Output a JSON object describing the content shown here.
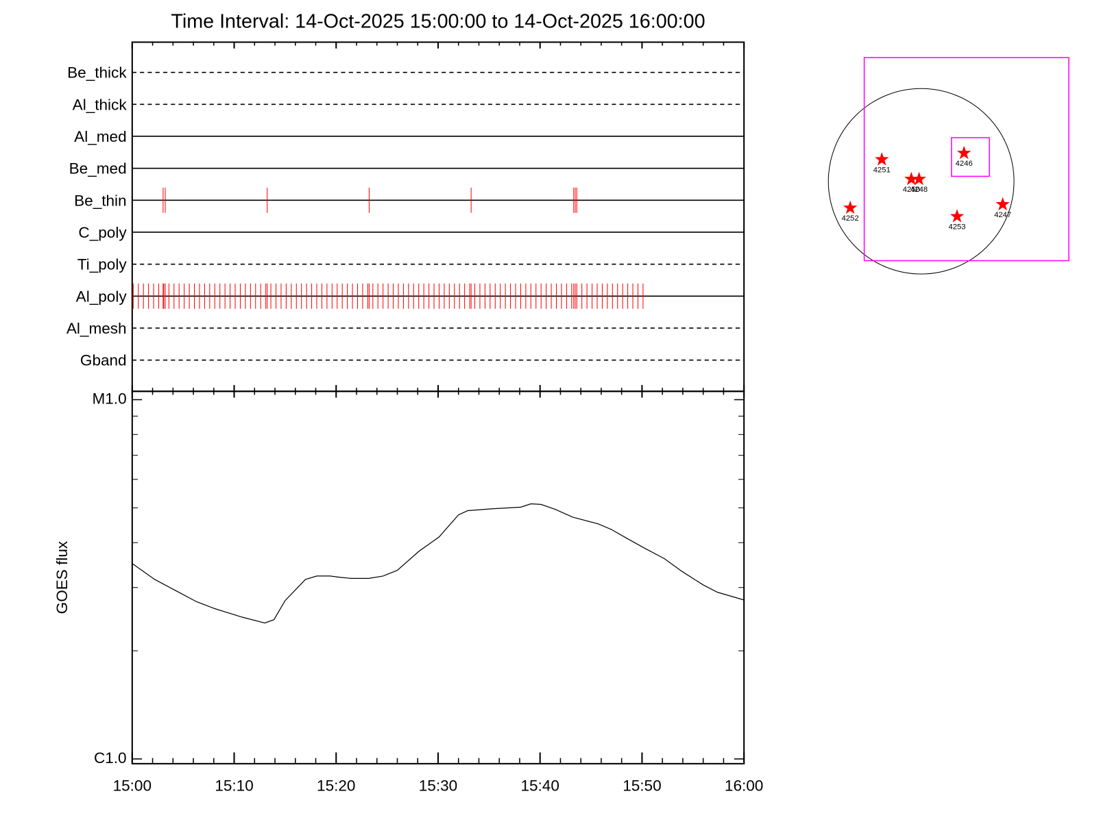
{
  "chart_data": [
    {
      "type": "events",
      "title": "Time Interval: 14-Oct-2025 15:00:00 to 14-Oct-2025 16:00:00",
      "categories": [
        "Be_thick",
        "Al_thick",
        "Al_med",
        "Be_med",
        "Be_thin",
        "C_poly",
        "Ti_poly",
        "Al_poly",
        "Al_mesh",
        "Gband"
      ],
      "line_styles": [
        "dashed",
        "dashed",
        "solid",
        "solid",
        "solid",
        "solid",
        "dashed",
        "solid",
        "dashed",
        "dashed"
      ],
      "color": "#ff0000",
      "events": [
        [],
        [],
        [],
        [],
        [
          3.03,
          3.24,
          13.24,
          23.24,
          33.24,
          43.3,
          43.45,
          43.6
        ],
        [],
        [],
        [
          0.1,
          0.6,
          1.1,
          1.6,
          2.1,
          2.6,
          3.1,
          3.6,
          4.1,
          4.6,
          5.1,
          5.6,
          6.1,
          6.6,
          7.1,
          7.6,
          8.1,
          8.6,
          9.1,
          9.6,
          10.1,
          10.6,
          11.1,
          11.6,
          12.1,
          12.6,
          13.1,
          13.6,
          14.1,
          14.6,
          15.1,
          15.6,
          16.1,
          16.6,
          17.1,
          17.6,
          18.1,
          18.6,
          19.1,
          19.6,
          20.1,
          20.6,
          21.1,
          21.6,
          22.1,
          22.6,
          23.1,
          23.6,
          24.1,
          24.6,
          25.1,
          25.6,
          26.1,
          26.6,
          27.1,
          27.6,
          28.1,
          28.6,
          29.1,
          29.6,
          30.1,
          30.6,
          31.1,
          31.6,
          32.1,
          32.6,
          33.1,
          33.6,
          34.1,
          34.6,
          35.1,
          35.6,
          36.1,
          36.6,
          37.1,
          37.6,
          38.1,
          38.6,
          39.1,
          39.6,
          40.1,
          40.6,
          41.1,
          41.6,
          42.1,
          42.6,
          43.1,
          43.6,
          44.1,
          44.6,
          45.1,
          45.6,
          46.1,
          46.6,
          47.1,
          47.6,
          48.1,
          48.6,
          49.1,
          49.6,
          50.1,
          3.03,
          3.24,
          13.24,
          23.24,
          33.24,
          43.3,
          43.45
        ],
        [],
        []
      ],
      "xlim": [
        0,
        60
      ],
      "xticks": [
        0,
        10,
        20,
        30,
        40,
        50,
        60
      ],
      "xminorticks": [
        2,
        4,
        6,
        8,
        12,
        14,
        16,
        18,
        22,
        24,
        26,
        28,
        32,
        34,
        36,
        38,
        42,
        44,
        46,
        48,
        52,
        54,
        56,
        58
      ]
    },
    {
      "type": "line",
      "y_label": "GOES flux",
      "log_scale": true,
      "color": "#000000",
      "x": [
        0,
        2.2,
        6.3,
        8.1,
        10.8,
        13.0,
        13.9,
        15.0,
        17.0,
        18.1,
        19.4,
        20.5,
        21.5,
        23.2,
        24.6,
        26.0,
        28.1,
        30.1,
        32.0,
        32.9,
        35.3,
        38.1,
        39.1,
        40.1,
        41.5,
        43.2,
        45.7,
        47.0,
        48.4,
        50.1,
        52.2,
        53.9,
        56.0,
        57.4,
        60
      ],
      "values": [
        3.5e-06,
        3.16e-06,
        2.74e-06,
        2.62e-06,
        2.48e-06,
        2.39e-06,
        2.44e-06,
        2.76e-06,
        3.16e-06,
        3.23e-06,
        3.23e-06,
        3.2e-06,
        3.18e-06,
        3.18e-06,
        3.23e-06,
        3.35e-06,
        3.78e-06,
        4.15e-06,
        4.78e-06,
        4.91e-06,
        4.97e-06,
        5.02e-06,
        5.13e-06,
        5.11e-06,
        4.95e-06,
        4.71e-06,
        4.51e-06,
        4.35e-06,
        4.13e-06,
        3.88e-06,
        3.61e-06,
        3.33e-06,
        3.05e-06,
        2.91e-06,
        2.77e-06
      ],
      "xlim": [
        0,
        60
      ],
      "xticks": [
        {
          "value": 0,
          "label": "15:00"
        },
        {
          "value": 10,
          "label": "15:10"
        },
        {
          "value": 20,
          "label": "15:20"
        },
        {
          "value": 30,
          "label": "15:30"
        },
        {
          "value": 40,
          "label": "15:40"
        },
        {
          "value": 50,
          "label": "15:50"
        },
        {
          "value": 60,
          "label": "16:00"
        }
      ],
      "xminorticks": [
        2,
        4,
        6,
        8,
        12,
        14,
        16,
        18,
        22,
        24,
        26,
        28,
        32,
        34,
        36,
        38,
        42,
        44,
        46,
        48,
        52,
        54,
        56,
        58
      ],
      "ylim": [
        9.7e-07,
        1.055e-05
      ],
      "yticks": [
        {
          "value": 1e-06,
          "label": "C1.0"
        },
        {
          "value": 1e-05,
          "label": "M1.0"
        }
      ],
      "yminorticks": [
        2e-06,
        3e-06,
        4e-06,
        5e-06,
        6e-06,
        7e-06,
        8e-06,
        9e-06
      ]
    },
    {
      "type": "map",
      "solar_radius": 960,
      "color": "#ff0000",
      "box_color": "#ff00ff",
      "regions": [
        {
          "label": "4251",
          "x": -407,
          "y": 225
        },
        {
          "label": "4250",
          "x": -102,
          "y": 22
        },
        {
          "label": "4248",
          "x": -22,
          "y": 22
        },
        {
          "label": "4246",
          "x": 443,
          "y": 291
        },
        {
          "label": "4252",
          "x": -734,
          "y": -276
        },
        {
          "label": "4253",
          "x": 371,
          "y": -364
        },
        {
          "label": "4247",
          "x": 843,
          "y": -240
        }
      ],
      "boxes": [
        {
          "x": [
            -589,
            1527
          ],
          "y": [
            -822,
            1280
          ]
        },
        {
          "x": [
            313,
            705
          ],
          "y": [
            51,
            451
          ]
        }
      ]
    }
  ]
}
